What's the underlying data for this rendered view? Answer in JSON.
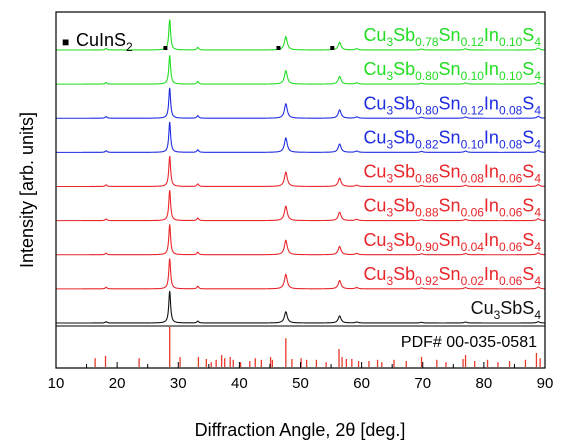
{
  "chart_data": {
    "type": "line",
    "xlabel": "Diffraction Angle, 2θ [deg.]",
    "ylabel": "Intensity [arb. units]",
    "xlim": [
      10,
      90
    ],
    "xticks": [
      "10",
      "20",
      "30",
      "40",
      "50",
      "60",
      "70",
      "80",
      "90"
    ],
    "grid": false,
    "legend": {
      "marker": "■",
      "text": "CuInS",
      "sub": "2",
      "placement": "top-left"
    },
    "secondary_phase_markers_x": [
      27.9,
      46.4,
      55.2
    ],
    "reference": {
      "name": "PDF# 00-035-0581",
      "color": "#e8392b",
      "lines": [
        {
          "x": 16.4,
          "h": 0.22
        },
        {
          "x": 18.1,
          "h": 0.28
        },
        {
          "x": 23.6,
          "h": 0.22
        },
        {
          "x": 28.6,
          "h": 1.0
        },
        {
          "x": 30.3,
          "h": 0.25
        },
        {
          "x": 33.3,
          "h": 0.25
        },
        {
          "x": 34.6,
          "h": 0.2
        },
        {
          "x": 35.4,
          "h": 0.12
        },
        {
          "x": 36.2,
          "h": 0.18
        },
        {
          "x": 37.1,
          "h": 0.3
        },
        {
          "x": 37.6,
          "h": 0.22
        },
        {
          "x": 38.5,
          "h": 0.25
        },
        {
          "x": 39.0,
          "h": 0.18
        },
        {
          "x": 40.2,
          "h": 0.12
        },
        {
          "x": 41.7,
          "h": 0.15
        },
        {
          "x": 42.6,
          "h": 0.22
        },
        {
          "x": 43.6,
          "h": 0.18
        },
        {
          "x": 45.1,
          "h": 0.25
        },
        {
          "x": 45.4,
          "h": 0.18
        },
        {
          "x": 47.6,
          "h": 0.72
        },
        {
          "x": 48.6,
          "h": 0.2
        },
        {
          "x": 50.1,
          "h": 0.22
        },
        {
          "x": 51.0,
          "h": 0.18
        },
        {
          "x": 52.6,
          "h": 0.18
        },
        {
          "x": 54.2,
          "h": 0.12
        },
        {
          "x": 56.3,
          "h": 0.45
        },
        {
          "x": 56.8,
          "h": 0.25
        },
        {
          "x": 57.5,
          "h": 0.2
        },
        {
          "x": 58.4,
          "h": 0.2
        },
        {
          "x": 59.5,
          "h": 0.15
        },
        {
          "x": 61.2,
          "h": 0.15
        },
        {
          "x": 62.6,
          "h": 0.18
        },
        {
          "x": 63.3,
          "h": 0.12
        },
        {
          "x": 65.3,
          "h": 0.18
        },
        {
          "x": 67.3,
          "h": 0.15
        },
        {
          "x": 69.8,
          "h": 0.25
        },
        {
          "x": 72.3,
          "h": 0.18
        },
        {
          "x": 73.8,
          "h": 0.12
        },
        {
          "x": 76.6,
          "h": 0.2
        },
        {
          "x": 77.0,
          "h": 0.3
        },
        {
          "x": 78.5,
          "h": 0.15
        },
        {
          "x": 80.6,
          "h": 0.18
        },
        {
          "x": 82.3,
          "h": 0.12
        },
        {
          "x": 84.2,
          "h": 0.15
        },
        {
          "x": 86.8,
          "h": 0.18
        },
        {
          "x": 88.6,
          "h": 0.35
        },
        {
          "x": 89.2,
          "h": 0.22
        }
      ]
    },
    "series": [
      {
        "color": "#22dd22",
        "label_parts": [
          [
            "Cu",
            ""
          ],
          [
            "3",
            "sub"
          ],
          [
            "Sb",
            ""
          ],
          [
            "0.78",
            "sub"
          ],
          [
            "Sn",
            ""
          ],
          [
            "0.12",
            "sub"
          ],
          [
            "In",
            ""
          ],
          [
            "0.10",
            "sub"
          ],
          [
            "S",
            ""
          ],
          [
            "4",
            "sub"
          ]
        ],
        "peaks": [
          [
            18.2,
            0.05
          ],
          [
            28.6,
            0.95
          ],
          [
            33.2,
            0.08
          ],
          [
            47.6,
            0.42
          ],
          [
            56.4,
            0.24
          ],
          [
            59.2,
            0.04
          ],
          [
            69.8,
            0.03
          ],
          [
            77.0,
            0.04
          ],
          [
            88.9,
            0.06
          ]
        ]
      },
      {
        "color": "#22dd22",
        "label_parts": [
          [
            "Cu",
            ""
          ],
          [
            "3",
            "sub"
          ],
          [
            "Sb",
            ""
          ],
          [
            "0.80",
            "sub"
          ],
          [
            "Sn",
            ""
          ],
          [
            "0.10",
            "sub"
          ],
          [
            "In",
            ""
          ],
          [
            "0.10",
            "sub"
          ],
          [
            "S",
            ""
          ],
          [
            "4",
            "sub"
          ]
        ],
        "peaks": [
          [
            18.2,
            0.05
          ],
          [
            28.6,
            0.9
          ],
          [
            33.2,
            0.08
          ],
          [
            47.6,
            0.42
          ],
          [
            56.4,
            0.24
          ],
          [
            59.2,
            0.04
          ],
          [
            69.8,
            0.03
          ],
          [
            77.0,
            0.04
          ],
          [
            88.9,
            0.06
          ]
        ]
      },
      {
        "color": "#1f2de0",
        "label_parts": [
          [
            "Cu",
            ""
          ],
          [
            "3",
            "sub"
          ],
          [
            "Sb",
            ""
          ],
          [
            "0.80",
            "sub"
          ],
          [
            "Sn",
            ""
          ],
          [
            "0.12",
            "sub"
          ],
          [
            "In",
            ""
          ],
          [
            "0.08",
            "sub"
          ],
          [
            "S",
            ""
          ],
          [
            "4",
            "sub"
          ]
        ],
        "peaks": [
          [
            18.2,
            0.05
          ],
          [
            28.6,
            0.95
          ],
          [
            33.2,
            0.08
          ],
          [
            47.6,
            0.45
          ],
          [
            56.4,
            0.26
          ],
          [
            59.2,
            0.04
          ],
          [
            69.8,
            0.03
          ],
          [
            77.0,
            0.04
          ],
          [
            88.9,
            0.06
          ]
        ]
      },
      {
        "color": "#1f2de0",
        "label_parts": [
          [
            "Cu",
            ""
          ],
          [
            "3",
            "sub"
          ],
          [
            "Sb",
            ""
          ],
          [
            "0.82",
            "sub"
          ],
          [
            "Sn",
            ""
          ],
          [
            "0.10",
            "sub"
          ],
          [
            "In",
            ""
          ],
          [
            "0.08",
            "sub"
          ],
          [
            "S",
            ""
          ],
          [
            "4",
            "sub"
          ]
        ],
        "peaks": [
          [
            18.2,
            0.05
          ],
          [
            28.6,
            0.95
          ],
          [
            33.2,
            0.08
          ],
          [
            47.6,
            0.45
          ],
          [
            56.4,
            0.26
          ],
          [
            59.2,
            0.04
          ],
          [
            69.8,
            0.03
          ],
          [
            77.0,
            0.04
          ],
          [
            88.9,
            0.06
          ]
        ]
      },
      {
        "color": "#e8262b",
        "label_parts": [
          [
            "Cu",
            ""
          ],
          [
            "3",
            "sub"
          ],
          [
            "Sb",
            ""
          ],
          [
            "0.86",
            "sub"
          ],
          [
            "Sn",
            ""
          ],
          [
            "0.08",
            "sub"
          ],
          [
            "In",
            ""
          ],
          [
            "0.06",
            "sub"
          ],
          [
            "S",
            ""
          ],
          [
            "4",
            "sub"
          ]
        ],
        "peaks": [
          [
            18.2,
            0.05
          ],
          [
            28.6,
            0.95
          ],
          [
            33.2,
            0.08
          ],
          [
            47.6,
            0.45
          ],
          [
            56.4,
            0.26
          ],
          [
            59.2,
            0.04
          ],
          [
            69.8,
            0.03
          ],
          [
            77.0,
            0.04
          ],
          [
            88.9,
            0.06
          ]
        ]
      },
      {
        "color": "#e8262b",
        "label_parts": [
          [
            "Cu",
            ""
          ],
          [
            "3",
            "sub"
          ],
          [
            "Sb",
            ""
          ],
          [
            "0.88",
            "sub"
          ],
          [
            "Sn",
            ""
          ],
          [
            "0.06",
            "sub"
          ],
          [
            "In",
            ""
          ],
          [
            "0.06",
            "sub"
          ],
          [
            "S",
            ""
          ],
          [
            "4",
            "sub"
          ]
        ],
        "peaks": [
          [
            18.2,
            0.05
          ],
          [
            28.6,
            0.95
          ],
          [
            33.2,
            0.08
          ],
          [
            47.6,
            0.45
          ],
          [
            56.4,
            0.26
          ],
          [
            59.2,
            0.04
          ],
          [
            69.8,
            0.03
          ],
          [
            77.0,
            0.04
          ],
          [
            88.9,
            0.06
          ]
        ]
      },
      {
        "color": "#e8262b",
        "label_parts": [
          [
            "Cu",
            ""
          ],
          [
            "3",
            "sub"
          ],
          [
            "Sb",
            ""
          ],
          [
            "0.90",
            "sub"
          ],
          [
            "Sn",
            ""
          ],
          [
            "0.04",
            "sub"
          ],
          [
            "In",
            ""
          ],
          [
            "0.06",
            "sub"
          ],
          [
            "S",
            ""
          ],
          [
            "4",
            "sub"
          ]
        ],
        "peaks": [
          [
            18.2,
            0.05
          ],
          [
            28.6,
            0.95
          ],
          [
            33.2,
            0.08
          ],
          [
            47.6,
            0.45
          ],
          [
            56.4,
            0.26
          ],
          [
            59.2,
            0.04
          ],
          [
            69.8,
            0.03
          ],
          [
            77.0,
            0.04
          ],
          [
            88.9,
            0.06
          ]
        ]
      },
      {
        "color": "#e8262b",
        "label_parts": [
          [
            "Cu",
            ""
          ],
          [
            "3",
            "sub"
          ],
          [
            "Sb",
            ""
          ],
          [
            "0.92",
            "sub"
          ],
          [
            "Sn",
            ""
          ],
          [
            "0.02",
            "sub"
          ],
          [
            "In",
            ""
          ],
          [
            "0.06",
            "sub"
          ],
          [
            "S",
            ""
          ],
          [
            "4",
            "sub"
          ]
        ],
        "peaks": [
          [
            18.2,
            0.05
          ],
          [
            28.6,
            0.95
          ],
          [
            33.2,
            0.08
          ],
          [
            47.6,
            0.45
          ],
          [
            56.4,
            0.26
          ],
          [
            59.2,
            0.04
          ],
          [
            69.8,
            0.03
          ],
          [
            77.0,
            0.04
          ],
          [
            88.9,
            0.06
          ]
        ]
      },
      {
        "color": "#111111",
        "label_parts": [
          [
            "Cu",
            ""
          ],
          [
            "3",
            "sub"
          ],
          [
            "SbS",
            ""
          ],
          [
            "4",
            "sub"
          ]
        ],
        "peaks": [
          [
            18.2,
            0.04
          ],
          [
            28.6,
            1.0
          ],
          [
            33.2,
            0.06
          ],
          [
            47.6,
            0.35
          ],
          [
            56.4,
            0.22
          ],
          [
            59.2,
            0.03
          ],
          [
            69.8,
            0.02
          ],
          [
            77.0,
            0.03
          ],
          [
            88.9,
            0.04
          ]
        ]
      }
    ]
  }
}
